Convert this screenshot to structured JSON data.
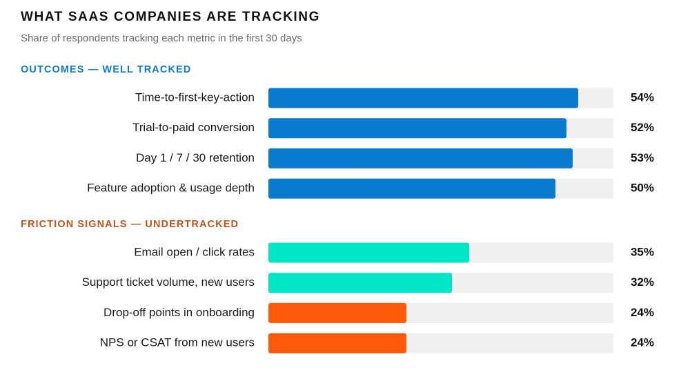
{
  "title": "WHAT SAAS COMPANIES ARE TRACKING",
  "subtitle": "Share of respondents tracking each metric in the first 30 days",
  "chart_data": {
    "type": "bar",
    "orientation": "horizontal",
    "xlim": [
      0,
      60
    ],
    "grid": false,
    "groups": [
      {
        "label": "OUTCOMES — WELL TRACKED",
        "label_color": "#0A7ACF",
        "bar_color": "#0A7ACF",
        "items": [
          {
            "category": "Time-to-first-key-action",
            "value": 54,
            "value_label": "54%",
            "color": "#0A7ACF"
          },
          {
            "category": "Trial-to-paid conversion",
            "value": 52,
            "value_label": "52%",
            "color": "#0A7ACF"
          },
          {
            "category": "Day 1 / 7 / 30 retention",
            "value": 53,
            "value_label": "53%",
            "color": "#0A7ACF"
          },
          {
            "category": "Feature adoption & usage depth",
            "value": 50,
            "value_label": "50%",
            "color": "#0A7ACF"
          }
        ]
      },
      {
        "label": "FRICTION SIGNALS — UNDERTRACKED",
        "label_color": "#C0531A",
        "items": [
          {
            "category": "Email open / click rates",
            "value": 35,
            "value_label": "35%",
            "color": "#00E5C3"
          },
          {
            "category": "Support ticket volume, new users",
            "value": 32,
            "value_label": "32%",
            "color": "#00E5C3"
          },
          {
            "category": "Drop-off points in onboarding",
            "value": 24,
            "value_label": "24%",
            "color": "#FF5A0A"
          },
          {
            "category": "NPS or CSAT from new users",
            "value": 24,
            "value_label": "24%",
            "color": "#FF5A0A"
          }
        ]
      }
    ],
    "track_color": "#EFEFEF"
  }
}
